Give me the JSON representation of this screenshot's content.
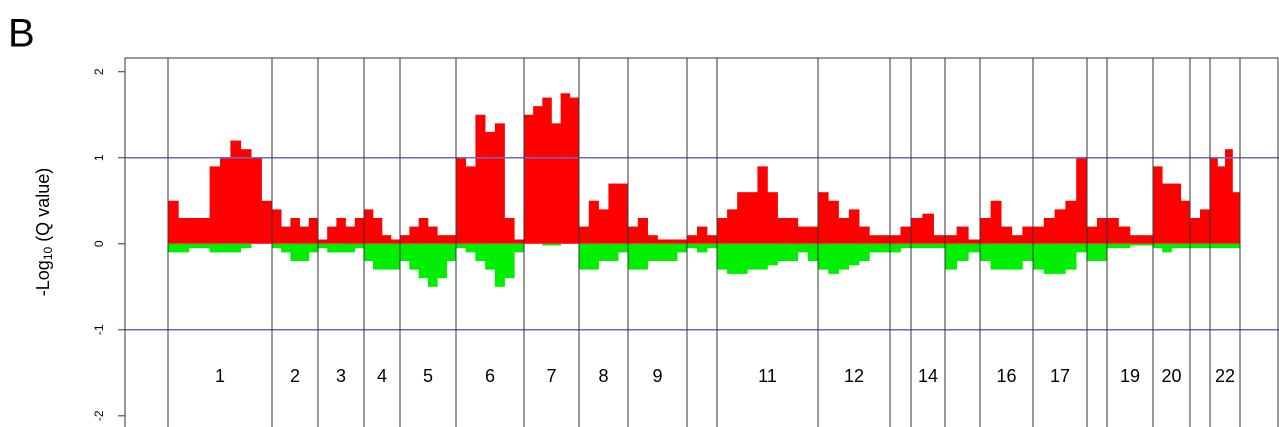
{
  "chart_data": {
    "type": "genome_bar",
    "panel_label": "B",
    "y_label": {
      "prefix": "-Log",
      "subscript": "10",
      "suffix": " (Q value)"
    },
    "categories": [
      "1",
      "2",
      "3",
      "4",
      "5",
      "6",
      "7",
      "8",
      "9",
      null,
      "11",
      "12",
      null,
      "14",
      null,
      "16",
      "17",
      null,
      "19",
      "20",
      null,
      "22"
    ],
    "chromosome_bounds": [
      43,
      147,
      193,
      239,
      275,
      331,
      399,
      454,
      503,
      562,
      592,
      693,
      765,
      786,
      820,
      855,
      908,
      962,
      982,
      1028,
      1065,
      1085,
      1115
    ],
    "xlim": [
      0,
      1154
    ],
    "ylim": [
      -2.13,
      2.16
    ],
    "yticks": [
      -2,
      -1,
      0,
      1,
      2
    ],
    "reference_lines": [
      1,
      -1
    ],
    "reference_color": "#6b6bbf",
    "amplification": {
      "color": "#ff0000",
      "values": [
        [
          0.5,
          0.3,
          0.3,
          0.3,
          0.9,
          1.0,
          1.2,
          1.1,
          1.0,
          0.5
        ],
        [
          0.4,
          0.2,
          0.3,
          0.2,
          0.3
        ],
        [
          0.05,
          0.2,
          0.3,
          0.2,
          0.3
        ],
        [
          0.4,
          0.3,
          0.1,
          0.05
        ],
        [
          0.1,
          0.2,
          0.3,
          0.2,
          0.1,
          0.1
        ],
        [
          1.0,
          0.9,
          1.5,
          1.3,
          1.4,
          0.3,
          0.05
        ],
        [
          1.5,
          1.6,
          1.7,
          1.4,
          1.75,
          1.7
        ],
        [
          0.2,
          0.5,
          0.4,
          0.7,
          0.7
        ],
        [
          0.2,
          0.3,
          0.1,
          0.05,
          0.05,
          0.05
        ],
        [
          0.1,
          0.2,
          0.1
        ],
        [
          0.3,
          0.4,
          0.6,
          0.6,
          0.9,
          0.6,
          0.3,
          0.3,
          0.2,
          0.2
        ],
        [
          0.6,
          0.5,
          0.3,
          0.4,
          0.2,
          0.1,
          0.1
        ],
        [
          0.1,
          0.2
        ],
        [
          0.3,
          0.35,
          0.1
        ],
        [
          0.1,
          0.2,
          0.05
        ],
        [
          0.3,
          0.5,
          0.2,
          0.1,
          0.2
        ],
        [
          0.2,
          0.3,
          0.4,
          0.5,
          1.0
        ],
        [
          0.2,
          0.3
        ],
        [
          0.3,
          0.2,
          0.1,
          0.1
        ],
        [
          0.9,
          0.7,
          0.7,
          0.5
        ],
        [
          0.3,
          0.4
        ],
        [
          1.0,
          0.9,
          1.1,
          0.6
        ]
      ]
    },
    "deletion": {
      "color": "#00ee00",
      "values": [
        [
          -0.1,
          -0.1,
          -0.05,
          -0.05,
          -0.1,
          -0.1,
          -0.1,
          -0.05,
          0,
          0
        ],
        [
          -0.05,
          -0.1,
          -0.2,
          -0.2,
          -0.1
        ],
        [
          -0.05,
          -0.1,
          -0.1,
          -0.1,
          -0.05
        ],
        [
          -0.2,
          -0.3,
          -0.3,
          -0.3
        ],
        [
          -0.2,
          -0.3,
          -0.4,
          -0.5,
          -0.4,
          -0.2
        ],
        [
          -0.05,
          -0.1,
          -0.2,
          -0.3,
          -0.5,
          -0.4,
          -0.1
        ],
        [
          0,
          0,
          -0.02,
          -0.02,
          0,
          0
        ],
        [
          -0.3,
          -0.3,
          -0.2,
          -0.2,
          -0.1
        ],
        [
          -0.3,
          -0.3,
          -0.2,
          -0.2,
          -0.2,
          -0.1
        ],
        [
          -0.05,
          -0.1,
          -0.05
        ],
        [
          -0.3,
          -0.35,
          -0.35,
          -0.3,
          -0.3,
          -0.25,
          -0.2,
          -0.2,
          -0.1,
          -0.2
        ],
        [
          -0.3,
          -0.35,
          -0.3,
          -0.25,
          -0.2,
          -0.1,
          -0.1
        ],
        [
          -0.1,
          -0.05
        ],
        [
          -0.05,
          -0.05,
          -0.05
        ],
        [
          -0.3,
          -0.2,
          -0.1
        ],
        [
          -0.2,
          -0.3,
          -0.3,
          -0.3,
          -0.2
        ],
        [
          -0.3,
          -0.35,
          -0.35,
          -0.3,
          -0.1
        ],
        [
          -0.2,
          -0.2
        ],
        [
          -0.05,
          -0.05,
          -0.02,
          -0.02
        ],
        [
          -0.05,
          -0.1,
          -0.05,
          -0.05
        ],
        [
          -0.05,
          -0.05
        ],
        [
          -0.05,
          -0.05,
          -0.05,
          -0.05
        ]
      ]
    }
  }
}
